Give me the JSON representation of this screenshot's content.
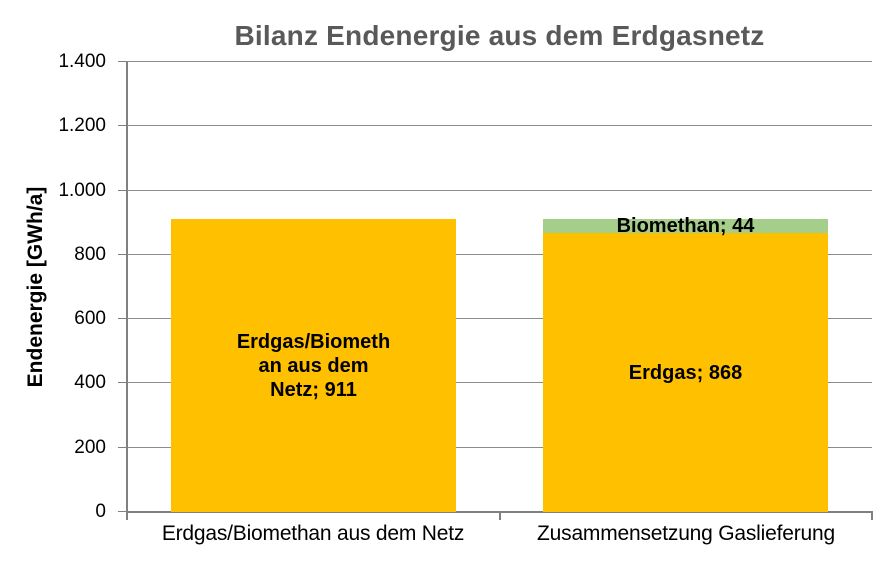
{
  "chart_data": {
    "type": "bar",
    "stacked": true,
    "title": "Bilanz Endenergie aus dem Erdgasnetz",
    "ylabel": "Endenergie [GWh/a]",
    "xlabel": "",
    "ylim": [
      0,
      1400
    ],
    "ytick_interval": 200,
    "yticks": [
      0,
      200,
      400,
      600,
      800,
      1000,
      1200,
      1400
    ],
    "ytick_labels": [
      "0",
      "200",
      "400",
      "600",
      "800",
      "1.000",
      "1.200",
      "1.400"
    ],
    "grid": true,
    "legend": "none",
    "categories": [
      "Erdgas/Biomethan aus dem Netz",
      "Zusammensetzung Gaslieferung"
    ],
    "bars": [
      {
        "segments": [
          {
            "name": "Erdgas/Biomethan aus dem Netz",
            "value": 911,
            "color": "#FFC000",
            "label_lines": [
              "Erdgas/Biometh",
              "an aus dem",
              "Netz; 911"
            ]
          }
        ]
      },
      {
        "segments": [
          {
            "name": "Erdgas",
            "value": 868,
            "color": "#FFC000",
            "label_lines": [
              "Erdgas; 868"
            ]
          },
          {
            "name": "Biomethan",
            "value": 44,
            "color": "#A6CE8B",
            "label_lines": [
              "Biomethan; 44"
            ]
          }
        ]
      }
    ],
    "colors": {
      "erdgas": "#FFC000",
      "biomethan": "#A6CE8B",
      "title_text": "#595959",
      "axis": "#808080",
      "gridline": "#8C8C8C",
      "label_text": "#000000"
    }
  }
}
